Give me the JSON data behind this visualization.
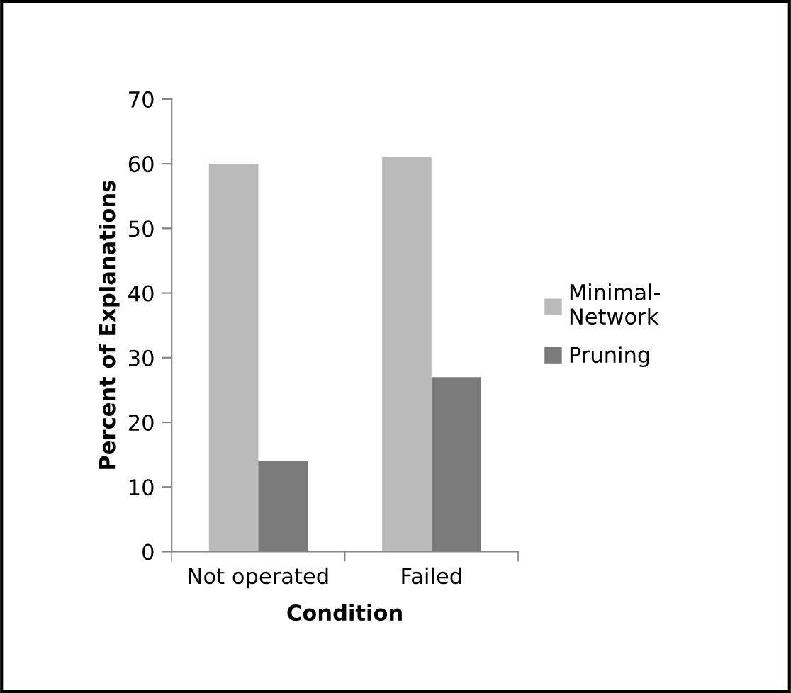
{
  "chart_data": {
    "type": "bar",
    "xlabel": "Condition",
    "ylabel": "Percent of Explanations",
    "categories": [
      "Not operated",
      "Failed"
    ],
    "series": [
      {
        "name": "Minimal-\nNetwork",
        "color": "#bababa",
        "values": [
          60,
          61
        ]
      },
      {
        "name": "Pruning",
        "color": "#7a7a7a",
        "values": [
          14,
          27
        ]
      }
    ],
    "ylim": [
      0,
      70
    ],
    "yticks": [
      0,
      10,
      20,
      30,
      40,
      50,
      60,
      70
    ],
    "grid": false,
    "legend": "right"
  }
}
